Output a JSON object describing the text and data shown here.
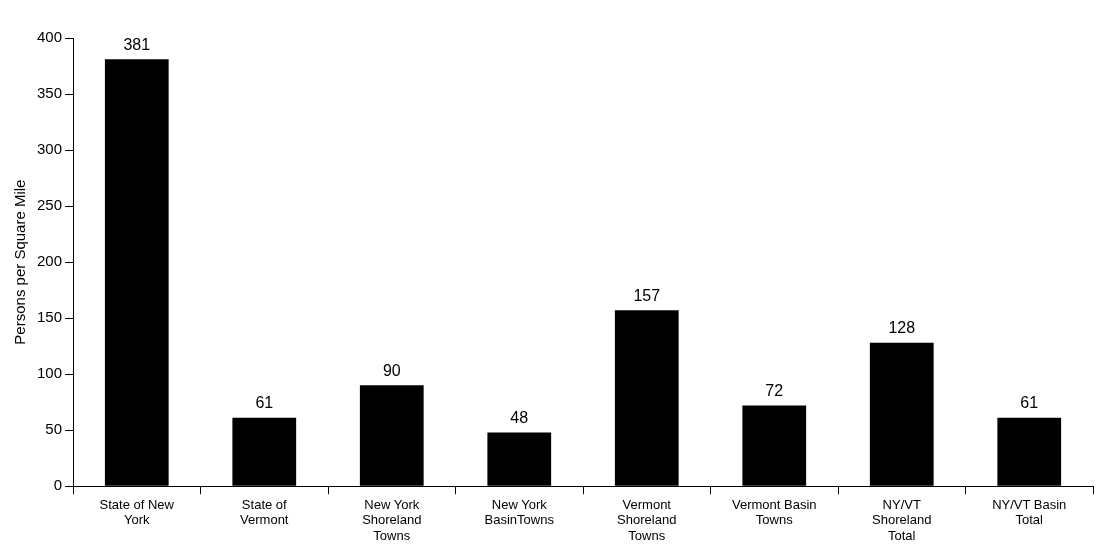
{
  "chart_data": {
    "type": "bar",
    "ylabel": "Persons per Square Mile",
    "categories": [
      "State of New York",
      "State of Vermont",
      "New York Shoreland Towns",
      "New York BasinTowns",
      "Vermont Shoreland Towns",
      "Vermont Basin Towns",
      "NY/VT Shoreland Total",
      "NY/VT Basin Total"
    ],
    "values": [
      381,
      61,
      90,
      48,
      157,
      72,
      128,
      61
    ],
    "color": "#000000",
    "ylim": [
      0,
      400
    ],
    "yticks": [
      0,
      50,
      100,
      150,
      200,
      250,
      300,
      350,
      400
    ],
    "grid": false,
    "legend": false,
    "data_labels": true
  }
}
